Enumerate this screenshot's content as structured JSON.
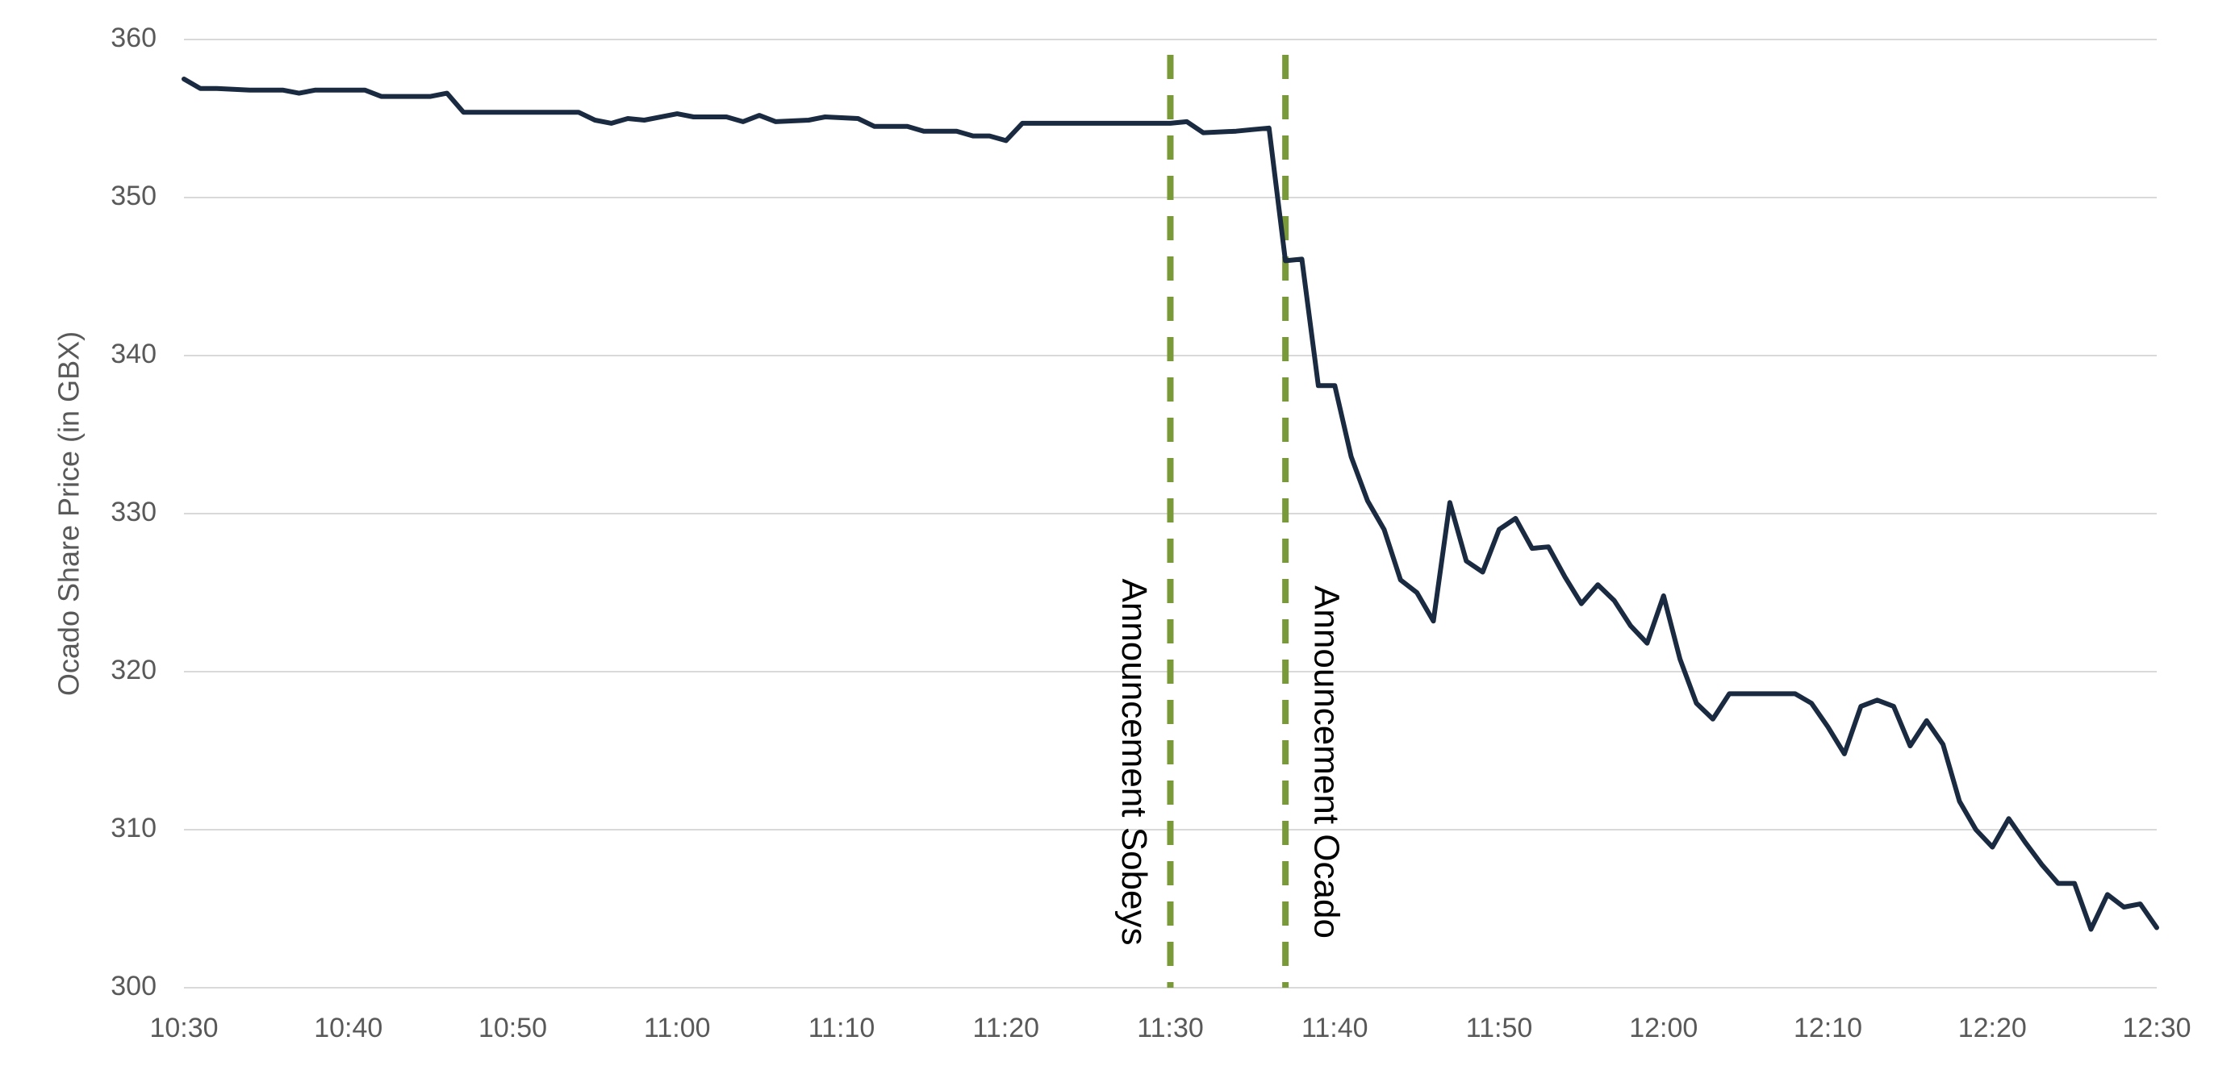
{
  "chart_data": {
    "type": "line",
    "y_label": "Ocado Share Price (in GBX)",
    "x": [
      "10:30",
      "10:31",
      "10:32",
      "10:34",
      "10:36",
      "10:37",
      "10:38",
      "10:41",
      "10:42",
      "10:45",
      "10:46",
      "10:47",
      "10:49",
      "10:53",
      "10:54",
      "10:55",
      "10:56",
      "10:57",
      "10:58",
      "11:00",
      "11:01",
      "11:03",
      "11:04",
      "11:05",
      "11:06",
      "11:08",
      "11:09",
      "11:11",
      "11:12",
      "11:14",
      "11:15",
      "11:17",
      "11:18",
      "11:19",
      "11:20",
      "11:21",
      "11:22",
      "11:30",
      "11:31",
      "11:32",
      "11:34",
      "11:35",
      "11:36",
      "11:37",
      "11:38",
      "11:39",
      "11:40",
      "11:41",
      "11:42",
      "11:43",
      "11:44",
      "11:45",
      "11:46",
      "11:47",
      "11:48",
      "11:49",
      "11:50",
      "11:51",
      "11:52",
      "11:53",
      "11:54",
      "11:55",
      "11:56",
      "11:57",
      "11:58",
      "11:59",
      "12:00",
      "12:01",
      "12:02",
      "12:03",
      "12:04",
      "12:05",
      "12:08",
      "12:09",
      "12:10",
      "12:11",
      "12:12",
      "12:13",
      "12:14",
      "12:15",
      "12:16",
      "12:17",
      "12:18",
      "12:19",
      "12:20",
      "12:21",
      "12:22",
      "12:23",
      "12:24",
      "12:25",
      "12:26",
      "12:27",
      "12:28",
      "12:29",
      "12:30"
    ],
    "series": [
      {
        "color": "#1a2a40",
        "values": [
          357.5,
          356.9,
          356.9,
          356.8,
          356.8,
          356.6,
          356.8,
          356.8,
          356.4,
          356.4,
          356.6,
          355.4,
          355.4,
          355.4,
          355.4,
          354.9,
          354.7,
          355.0,
          354.9,
          355.3,
          355.1,
          355.1,
          354.8,
          355.2,
          354.8,
          354.9,
          355.1,
          355.0,
          354.5,
          354.5,
          354.2,
          354.2,
          353.9,
          353.9,
          353.6,
          354.7,
          354.7,
          354.7,
          354.8,
          354.1,
          354.2,
          354.3,
          354.4,
          346.0,
          346.1,
          338.1,
          338.1,
          333.6,
          330.8,
          329.0,
          325.8,
          325.0,
          323.2,
          330.7,
          327.0,
          326.3,
          329.0,
          329.7,
          327.8,
          327.9,
          326.0,
          324.3,
          325.5,
          324.5,
          322.9,
          321.8,
          324.8,
          320.8,
          318.0,
          317.0,
          318.6,
          318.6,
          318.6,
          318.0,
          316.5,
          314.8,
          317.8,
          318.2,
          317.8,
          315.3,
          316.9,
          315.4,
          311.8,
          310.0,
          308.9,
          310.7,
          309.2,
          307.8,
          306.6,
          306.6,
          303.7,
          305.9,
          305.1,
          305.3,
          303.8
        ]
      }
    ],
    "xlim": [
      "10:30",
      "12:30"
    ],
    "xticks": [
      "10:30",
      "10:40",
      "10:50",
      "11:00",
      "11:10",
      "11:20",
      "11:30",
      "11:40",
      "11:50",
      "12:00",
      "12:10",
      "12:20",
      "12:30"
    ],
    "ylim": [
      300,
      360
    ],
    "yticks": [
      300,
      310,
      320,
      330,
      340,
      350,
      360
    ],
    "grid": true,
    "annotations": [
      {
        "x": "11:30",
        "label": "Announcement Sobeys",
        "side": "left",
        "color": "#7a9a3a"
      },
      {
        "x": "11:37",
        "label": "Announcement Ocado",
        "side": "right",
        "color": "#7a9a3a"
      }
    ]
  }
}
